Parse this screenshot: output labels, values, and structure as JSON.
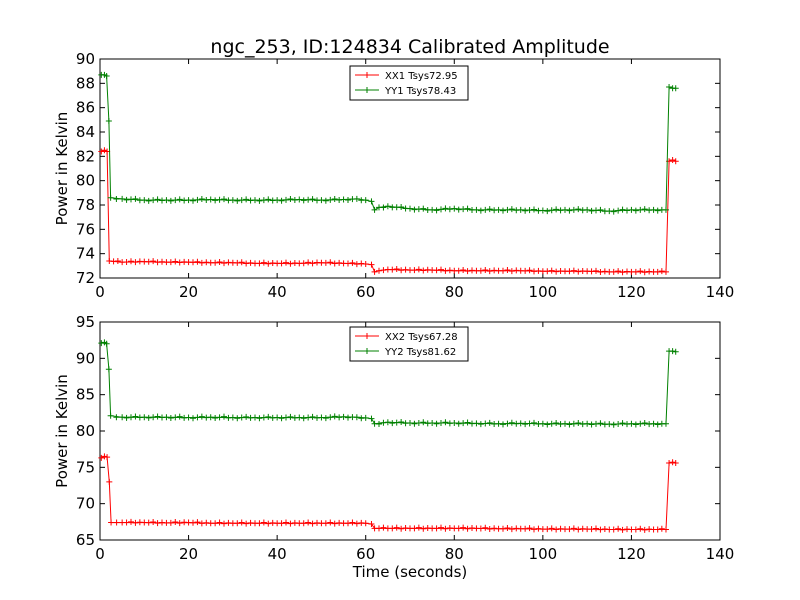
{
  "chart_data": {
    "title": "ngc_253, ID:124834 Calibrated Amplitude",
    "xlabel": "Time (seconds)",
    "xlim": [
      0,
      140
    ],
    "xticks": [
      0,
      20,
      40,
      60,
      80,
      100,
      120,
      140
    ],
    "panels": [
      {
        "type": "line",
        "ylabel": "Power in Kelvin",
        "ylim": [
          72,
          90
        ],
        "yticks": [
          72,
          74,
          76,
          78,
          80,
          82,
          84,
          86,
          88,
          90
        ],
        "legend_position": "top-center",
        "series": [
          {
            "name": "XX1 Tsys72.95",
            "color": "#ff0000",
            "points": [
              [
                0.3,
                82.4
              ],
              [
                1,
                82.5
              ],
              [
                1.6,
                82.4
              ],
              [
                2.1,
                73.4
              ],
              [
                5,
                73.3
              ],
              [
                10,
                73.35
              ],
              [
                15,
                73.3
              ],
              [
                20,
                73.3
              ],
              [
                25,
                73.25
              ],
              [
                30,
                73.25
              ],
              [
                35,
                73.2
              ],
              [
                40,
                73.2
              ],
              [
                45,
                73.2
              ],
              [
                50,
                73.25
              ],
              [
                55,
                73.2
              ],
              [
                60,
                73.15
              ],
              [
                61.3,
                73.1
              ],
              [
                62,
                72.5
              ],
              [
                63,
                72.6
              ],
              [
                65,
                72.7
              ],
              [
                70,
                72.65
              ],
              [
                75,
                72.65
              ],
              [
                80,
                72.6
              ],
              [
                85,
                72.6
              ],
              [
                90,
                72.6
              ],
              [
                95,
                72.6
              ],
              [
                100,
                72.55
              ],
              [
                105,
                72.55
              ],
              [
                110,
                72.55
              ],
              [
                115,
                72.5
              ],
              [
                120,
                72.5
              ],
              [
                125,
                72.5
              ],
              [
                127.8,
                72.5
              ],
              [
                128.5,
                81.6
              ],
              [
                129.3,
                81.7
              ],
              [
                130,
                81.6
              ]
            ]
          },
          {
            "name": "YY1 Tsys78.43",
            "color": "#008000",
            "points": [
              [
                0.3,
                88.7
              ],
              [
                1,
                88.7
              ],
              [
                1.5,
                88.6
              ],
              [
                2,
                84.9
              ],
              [
                2.4,
                78.6
              ],
              [
                5,
                78.5
              ],
              [
                10,
                78.4
              ],
              [
                15,
                78.4
              ],
              [
                20,
                78.4
              ],
              [
                25,
                78.45
              ],
              [
                30,
                78.4
              ],
              [
                35,
                78.4
              ],
              [
                40,
                78.4
              ],
              [
                45,
                78.45
              ],
              [
                50,
                78.4
              ],
              [
                55,
                78.45
              ],
              [
                58,
                78.5
              ],
              [
                60,
                78.4
              ],
              [
                61.3,
                78.3
              ],
              [
                62,
                77.6
              ],
              [
                63,
                77.8
              ],
              [
                65,
                77.9
              ],
              [
                70,
                77.7
              ],
              [
                75,
                77.6
              ],
              [
                80,
                77.7
              ],
              [
                85,
                77.6
              ],
              [
                90,
                77.6
              ],
              [
                95,
                77.6
              ],
              [
                100,
                77.55
              ],
              [
                105,
                77.6
              ],
              [
                110,
                77.6
              ],
              [
                115,
                77.5
              ],
              [
                120,
                77.6
              ],
              [
                125,
                77.6
              ],
              [
                127.8,
                77.6
              ],
              [
                128.5,
                87.7
              ],
              [
                129.3,
                87.6
              ],
              [
                130,
                87.6
              ]
            ]
          }
        ]
      },
      {
        "type": "line",
        "ylabel": "Power in Kelvin",
        "ylim": [
          65,
          95
        ],
        "yticks": [
          65,
          70,
          75,
          80,
          85,
          90,
          95
        ],
        "legend_position": "top-center",
        "series": [
          {
            "name": "XX2 Tsys67.28",
            "color": "#ff0000",
            "points": [
              [
                0.3,
                76.3
              ],
              [
                1,
                76.5
              ],
              [
                1.6,
                76.4
              ],
              [
                2.1,
                73
              ],
              [
                2.5,
                67.4
              ],
              [
                5,
                67.4
              ],
              [
                10,
                67.4
              ],
              [
                15,
                67.35
              ],
              [
                20,
                67.4
              ],
              [
                25,
                67.3
              ],
              [
                30,
                67.3
              ],
              [
                35,
                67.3
              ],
              [
                40,
                67.3
              ],
              [
                45,
                67.3
              ],
              [
                50,
                67.3
              ],
              [
                55,
                67.3
              ],
              [
                60,
                67.3
              ],
              [
                61.3,
                67.2
              ],
              [
                62,
                66.6
              ],
              [
                65,
                66.6
              ],
              [
                70,
                66.6
              ],
              [
                75,
                66.6
              ],
              [
                80,
                66.6
              ],
              [
                85,
                66.6
              ],
              [
                90,
                66.55
              ],
              [
                95,
                66.55
              ],
              [
                100,
                66.5
              ],
              [
                105,
                66.5
              ],
              [
                110,
                66.5
              ],
              [
                115,
                66.45
              ],
              [
                120,
                66.45
              ],
              [
                125,
                66.45
              ],
              [
                127.8,
                66.45
              ],
              [
                128.5,
                75.6
              ],
              [
                129.3,
                75.7
              ],
              [
                130,
                75.6
              ]
            ]
          },
          {
            "name": "YY2 Tsys81.62",
            "color": "#008000",
            "points": [
              [
                0.3,
                92.1
              ],
              [
                1,
                92.2
              ],
              [
                1.5,
                92
              ],
              [
                2,
                88.5
              ],
              [
                2.4,
                82.1
              ],
              [
                5,
                81.9
              ],
              [
                10,
                81.9
              ],
              [
                15,
                81.9
              ],
              [
                20,
                81.85
              ],
              [
                25,
                81.9
              ],
              [
                30,
                81.85
              ],
              [
                35,
                81.85
              ],
              [
                40,
                81.85
              ],
              [
                45,
                81.85
              ],
              [
                50,
                81.85
              ],
              [
                55,
                81.95
              ],
              [
                58,
                81.9
              ],
              [
                60,
                81.8
              ],
              [
                61.3,
                81.7
              ],
              [
                62,
                81.0
              ],
              [
                65,
                81.2
              ],
              [
                70,
                81.1
              ],
              [
                75,
                81.1
              ],
              [
                80,
                81.1
              ],
              [
                85,
                81.05
              ],
              [
                90,
                81.0
              ],
              [
                95,
                81.05
              ],
              [
                100,
                81.0
              ],
              [
                105,
                81.0
              ],
              [
                110,
                81.0
              ],
              [
                115,
                80.95
              ],
              [
                120,
                81.0
              ],
              [
                125,
                81.0
              ],
              [
                127.8,
                81.0
              ],
              [
                128.5,
                91.0
              ],
              [
                129.3,
                91.0
              ],
              [
                130,
                90.9
              ]
            ]
          }
        ]
      }
    ]
  }
}
